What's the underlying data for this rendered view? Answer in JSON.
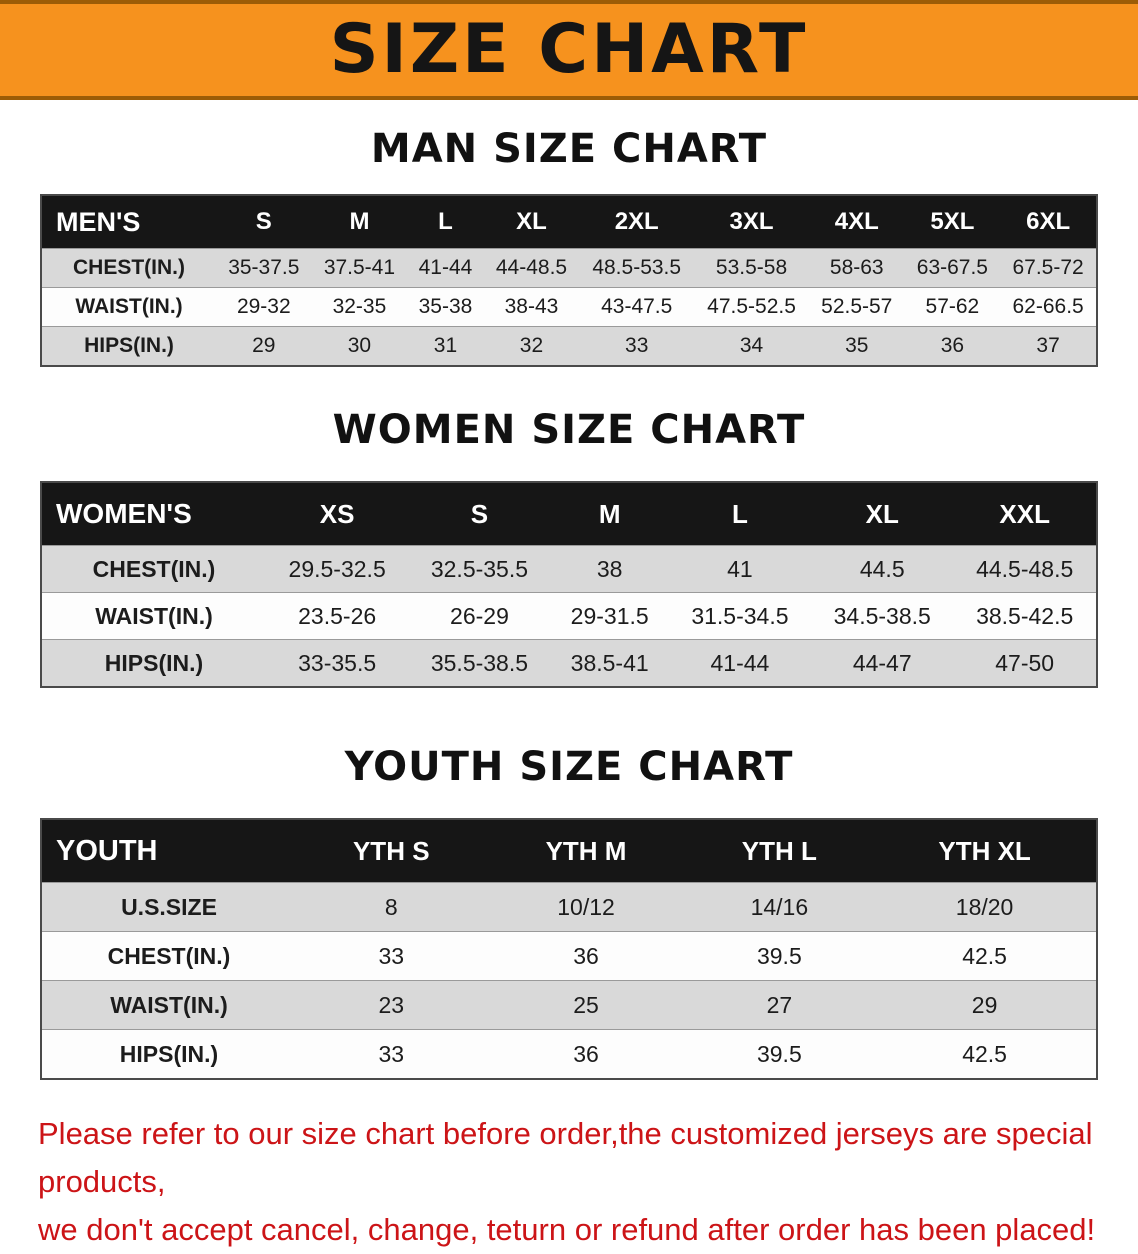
{
  "banner": {
    "title": "SIZE CHART"
  },
  "colors": {
    "banner_orange": "#f6921e",
    "banner_edge": "#9c5c06",
    "header_black": "#161616",
    "stripe_gray": "#d9d9d9",
    "warning_red": "#cc1417"
  },
  "sections": [
    {
      "heading": "MAN SIZE CHART",
      "table": {
        "name": "men-size",
        "label": "MEN'S",
        "columns": [
          "S",
          "M",
          "L",
          "XL",
          "2XL",
          "3XL",
          "4XL",
          "5XL",
          "6XL"
        ],
        "rows": [
          {
            "label": "CHEST(IN.)",
            "values": [
              "35-37.5",
              "37.5-41",
              "41-44",
              "44-48.5",
              "48.5-53.5",
              "53.5-58",
              "58-63",
              "63-67.5",
              "67.5-72"
            ]
          },
          {
            "label": "WAIST(IN.)",
            "values": [
              "29-32",
              "32-35",
              "35-38",
              "38-43",
              "43-47.5",
              "47.5-52.5",
              "52.5-57",
              "57-62",
              "62-66.5"
            ]
          },
          {
            "label": "HIPS(IN.)",
            "values": [
              "29",
              "30",
              "31",
              "32",
              "33",
              "34",
              "35",
              "36",
              "37"
            ]
          }
        ]
      }
    },
    {
      "heading": "WOMEN SIZE CHART",
      "table": {
        "name": "women-size",
        "label": "WOMEN'S",
        "columns": [
          "XS",
          "S",
          "M",
          "L",
          "XL",
          "XXL"
        ],
        "rows": [
          {
            "label": "CHEST(IN.)",
            "values": [
              "29.5-32.5",
              "32.5-35.5",
              "38",
              "41",
              "44.5",
              "44.5-48.5"
            ]
          },
          {
            "label": "WAIST(IN.)",
            "values": [
              "23.5-26",
              "26-29",
              "29-31.5",
              "31.5-34.5",
              "34.5-38.5",
              "38.5-42.5"
            ]
          },
          {
            "label": "HIPS(IN.)",
            "values": [
              "33-35.5",
              "35.5-38.5",
              "38.5-41",
              "41-44",
              "44-47",
              "47-50"
            ]
          }
        ]
      }
    },
    {
      "heading": "YOUTH SIZE CHART",
      "table": {
        "name": "youth-size",
        "label": "YOUTH",
        "columns": [
          "YTH S",
          "YTH M",
          "YTH L",
          "YTH XL"
        ],
        "rows": [
          {
            "label": "U.S.SIZE",
            "values": [
              "8",
              "10/12",
              "14/16",
              "18/20"
            ]
          },
          {
            "label": "CHEST(IN.)",
            "values": [
              "33",
              "36",
              "39.5",
              "42.5"
            ]
          },
          {
            "label": "WAIST(IN.)",
            "values": [
              "23",
              "25",
              "27",
              "29"
            ]
          },
          {
            "label": "HIPS(IN.)",
            "values": [
              "33",
              "36",
              "39.5",
              "42.5"
            ]
          }
        ]
      }
    }
  ],
  "disclaimer": {
    "line1": "Please refer to our size chart before order,the customized jerseys are special products,",
    "line2": "we don't accept cancel, change, teturn or refund after order has been placed!"
  }
}
